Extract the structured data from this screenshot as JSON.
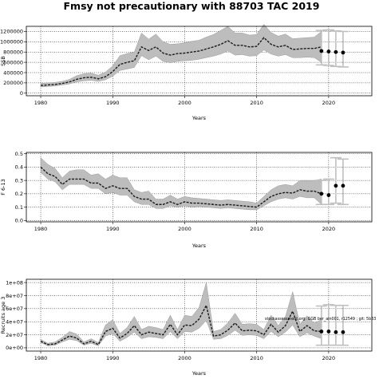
{
  "title": "Fmsy not precautionary with 88703 TAC 2019",
  "colors": {
    "band": "#bdbdbd",
    "band_edge": "#8c8c8c",
    "line": "#1a1a1a",
    "forecast": "#bfbfbf",
    "point": "#000000"
  },
  "chart_data": [
    {
      "type": "line",
      "name": "panel-ssb",
      "ylabel": "SSB",
      "xlabel": "Years",
      "xlim": [
        1978,
        2026
      ],
      "ylim": [
        -50000,
        1300000
      ],
      "x_ticks": [
        1980,
        1990,
        2000,
        2010,
        2020
      ],
      "y_ticks": [
        0,
        200000,
        400000,
        600000,
        800000,
        1000000,
        1200000
      ],
      "y_tick_labels": [
        "0",
        "200000",
        "400000",
        "600000",
        "800000",
        "1000000",
        "1200000"
      ],
      "grid": true,
      "series": [
        {
          "x": [
            1980,
            1981,
            1982,
            1983,
            1984,
            1985,
            1986,
            1987,
            1988,
            1989,
            1990,
            1991,
            1992,
            1993,
            1994,
            1995,
            1996,
            1997,
            1998,
            1999,
            2000,
            2001,
            2002,
            2003,
            2004,
            2005,
            2006,
            2007,
            2008,
            2009,
            2010,
            2011,
            2012,
            2013,
            2014,
            2015,
            2016,
            2017,
            2018,
            2019
          ],
          "y": [
            150000,
            160000,
            170000,
            190000,
            220000,
            270000,
            300000,
            310000,
            280000,
            320000,
            420000,
            560000,
            600000,
            630000,
            900000,
            830000,
            900000,
            780000,
            740000,
            770000,
            780000,
            800000,
            820000,
            860000,
            900000,
            950000,
            1020000,
            930000,
            930000,
            900000,
            910000,
            1080000,
            950000,
            900000,
            930000,
            850000,
            860000,
            870000,
            870000,
            900000
          ],
          "lower": [
            120000,
            130000,
            140000,
            160000,
            180000,
            220000,
            240000,
            250000,
            230000,
            260000,
            330000,
            440000,
            470000,
            500000,
            730000,
            650000,
            720000,
            620000,
            590000,
            620000,
            630000,
            640000,
            660000,
            690000,
            720000,
            760000,
            820000,
            740000,
            750000,
            720000,
            730000,
            840000,
            760000,
            720000,
            750000,
            690000,
            690000,
            700000,
            690000,
            600000
          ],
          "upper": [
            190000,
            200000,
            210000,
            230000,
            270000,
            340000,
            380000,
            390000,
            350000,
            410000,
            530000,
            730000,
            770000,
            800000,
            1170000,
            1050000,
            1150000,
            1000000,
            950000,
            960000,
            980000,
            1010000,
            1030000,
            1090000,
            1140000,
            1220000,
            1300000,
            1170000,
            1170000,
            1130000,
            1140000,
            1340000,
            1180000,
            1110000,
            1150000,
            1060000,
            1070000,
            1080000,
            1090000,
            1200000
          ]
        }
      ],
      "forecast": {
        "x": [
          2019,
          2020,
          2021,
          2022
        ],
        "y": [
          820000,
          810000,
          800000,
          790000
        ],
        "box_low": [
          550000,
          540000,
          520000,
          510000
        ],
        "box_high": [
          1220000,
          1230000,
          1210000,
          1200000
        ]
      }
    },
    {
      "type": "line",
      "name": "panel-fbar",
      "ylabel": "F 6-13",
      "xlabel": "Years",
      "xlim": [
        1978,
        2026
      ],
      "ylim": [
        -0.01,
        0.51
      ],
      "x_ticks": [
        1980,
        1990,
        2000,
        2010,
        2020
      ],
      "y_ticks": [
        0.0,
        0.1,
        0.2,
        0.3,
        0.4,
        0.5
      ],
      "y_tick_labels": [
        "0.0",
        "0.1",
        "0.2",
        "0.3",
        "0.4",
        "0.5"
      ],
      "grid": true,
      "series": [
        {
          "x": [
            1980,
            1981,
            1982,
            1983,
            1984,
            1985,
            1986,
            1987,
            1988,
            1989,
            1990,
            1991,
            1992,
            1993,
            1994,
            1995,
            1996,
            1997,
            1998,
            1999,
            2000,
            2001,
            2002,
            2003,
            2004,
            2005,
            2006,
            2007,
            2008,
            2009,
            2010,
            2011,
            2012,
            2013,
            2014,
            2015,
            2016,
            2017,
            2018,
            2019
          ],
          "y": [
            0.4,
            0.35,
            0.33,
            0.27,
            0.31,
            0.31,
            0.31,
            0.28,
            0.28,
            0.24,
            0.26,
            0.24,
            0.24,
            0.18,
            0.16,
            0.16,
            0.12,
            0.12,
            0.14,
            0.12,
            0.14,
            0.13,
            0.13,
            0.125,
            0.12,
            0.115,
            0.12,
            0.115,
            0.11,
            0.105,
            0.1,
            0.14,
            0.18,
            0.2,
            0.21,
            0.205,
            0.23,
            0.22,
            0.22,
            0.2
          ],
          "lower": [
            0.36,
            0.31,
            0.29,
            0.23,
            0.27,
            0.27,
            0.27,
            0.24,
            0.24,
            0.2,
            0.21,
            0.19,
            0.19,
            0.14,
            0.12,
            0.12,
            0.09,
            0.09,
            0.11,
            0.1,
            0.11,
            0.1,
            0.105,
            0.1,
            0.095,
            0.09,
            0.095,
            0.09,
            0.085,
            0.08,
            0.08,
            0.11,
            0.14,
            0.16,
            0.17,
            0.16,
            0.18,
            0.17,
            0.17,
            0.12
          ],
          "upper": [
            0.47,
            0.42,
            0.39,
            0.32,
            0.37,
            0.38,
            0.38,
            0.34,
            0.35,
            0.31,
            0.34,
            0.32,
            0.32,
            0.23,
            0.21,
            0.22,
            0.16,
            0.16,
            0.19,
            0.16,
            0.18,
            0.17,
            0.165,
            0.16,
            0.155,
            0.15,
            0.155,
            0.15,
            0.145,
            0.14,
            0.13,
            0.18,
            0.23,
            0.26,
            0.27,
            0.26,
            0.3,
            0.3,
            0.3,
            0.31
          ]
        }
      ],
      "forecast": {
        "x": [
          2019,
          2020,
          2021,
          2022
        ],
        "y": [
          0.2,
          0.19,
          0.26,
          0.26
        ],
        "box_low": [
          0.12,
          0.12,
          0.13,
          0.12
        ],
        "box_high": [
          0.3,
          0.31,
          0.47,
          0.46
        ]
      }
    },
    {
      "type": "line",
      "name": "panel-recruits",
      "ylabel": "Recruits age 3",
      "xlabel": "Years",
      "xlim": [
        1978,
        2026
      ],
      "ylim": [
        -5000000,
        105000000
      ],
      "x_ticks": [
        1980,
        1990,
        2000,
        2010,
        2020
      ],
      "y_ticks": [
        0,
        20000000,
        40000000,
        60000000,
        80000000,
        100000000
      ],
      "y_tick_labels": [
        "0e+00",
        "2e+07",
        "4e+07",
        "6e+07",
        "8e+07",
        "1e+08"
      ],
      "grid": true,
      "annotation": "stockassessment.org: GGB ber_ain001, r12549 ; git: 5b33",
      "series": [
        {
          "x": [
            1980,
            1981,
            1982,
            1983,
            1984,
            1985,
            1986,
            1987,
            1988,
            1989,
            1990,
            1991,
            1992,
            1993,
            1994,
            1995,
            1996,
            1997,
            1998,
            1999,
            2000,
            2001,
            2002,
            2003,
            2004,
            2005,
            2006,
            2007,
            2008,
            2009,
            2010,
            2011,
            2012,
            2013,
            2014,
            2015,
            2016,
            2017,
            2018,
            2019
          ],
          "y": [
            10000000,
            5000000,
            6000000,
            12000000,
            18000000,
            15000000,
            6000000,
            10000000,
            5000000,
            25000000,
            30000000,
            15000000,
            22000000,
            34000000,
            20000000,
            24000000,
            22000000,
            20000000,
            36000000,
            20000000,
            35000000,
            34000000,
            44000000,
            65000000,
            18000000,
            20000000,
            27000000,
            38000000,
            26000000,
            27000000,
            26000000,
            20000000,
            36000000,
            24000000,
            34000000,
            56000000,
            25000000,
            34000000,
            26000000,
            25000000
          ],
          "lower": [
            8000000,
            3000000,
            4000000,
            9000000,
            13000000,
            11000000,
            4000000,
            7000000,
            3000000,
            18000000,
            22000000,
            10000000,
            16000000,
            24000000,
            14000000,
            17000000,
            16000000,
            14000000,
            25000000,
            14000000,
            25000000,
            24000000,
            30000000,
            42000000,
            13000000,
            14000000,
            19000000,
            27000000,
            19000000,
            20000000,
            19000000,
            14000000,
            25000000,
            17000000,
            24000000,
            35000000,
            17000000,
            23000000,
            18000000,
            14000000
          ],
          "upper": [
            13000000,
            7000000,
            9000000,
            16000000,
            25000000,
            21000000,
            9000000,
            14000000,
            8000000,
            35000000,
            43000000,
            22000000,
            31000000,
            48000000,
            28000000,
            33000000,
            31000000,
            28000000,
            50000000,
            28000000,
            50000000,
            48000000,
            62000000,
            100000000,
            25000000,
            28000000,
            38000000,
            53000000,
            36000000,
            37000000,
            36000000,
            28000000,
            50000000,
            34000000,
            48000000,
            86000000,
            36000000,
            49000000,
            38000000,
            43000000
          ]
        }
      ],
      "forecast": {
        "x": [
          2019,
          2020,
          2021,
          2022
        ],
        "y": [
          25000000,
          25000000,
          24000000,
          24000000
        ],
        "box_low": [
          4000000,
          4000000,
          4000000,
          4000000
        ],
        "box_high": [
          64000000,
          66000000,
          65000000,
          65000000
        ]
      }
    }
  ]
}
